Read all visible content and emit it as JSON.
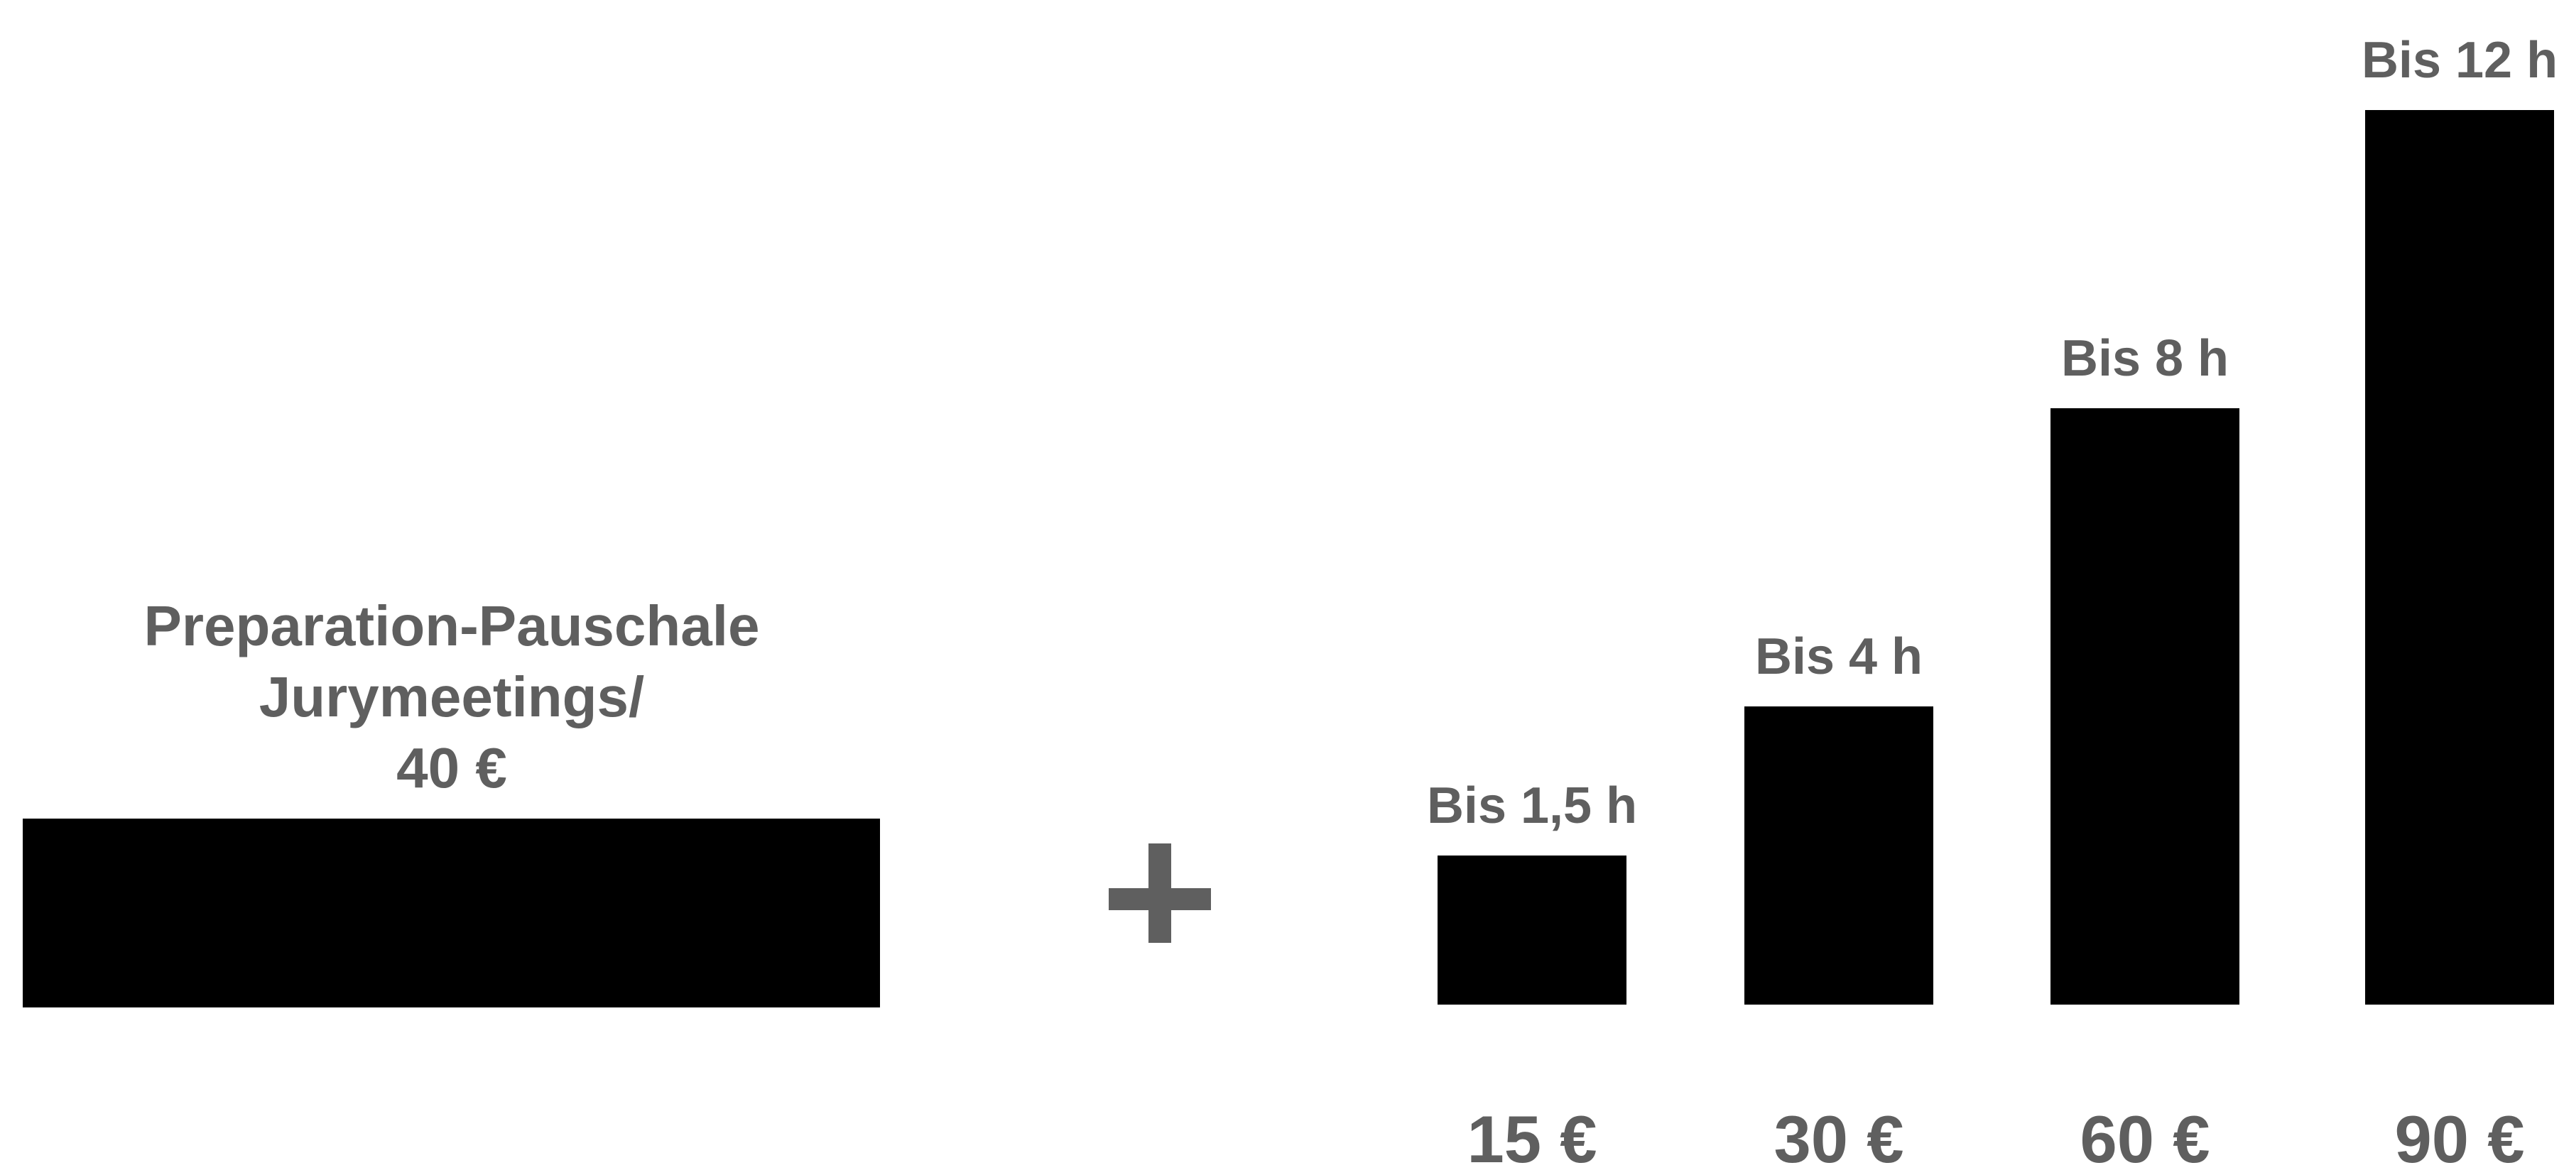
{
  "chart_data": {
    "type": "bar",
    "base": {
      "label_lines": [
        "Preparation-Pauschale",
        "Jurymeetings/",
        "40 €"
      ],
      "value": 40,
      "bar_color": "#000000"
    },
    "operator": "+",
    "tiers": {
      "categories": [
        "Bis 1,5 h",
        "Bis 4 h",
        "Bis 8 h",
        "Bis 12 h"
      ],
      "values": [
        15,
        30,
        60,
        90
      ],
      "value_labels": [
        "15 €",
        "30 €",
        "60 €",
        "90 €"
      ],
      "bar_color": "#000000"
    },
    "title": "",
    "xlabel": "",
    "ylabel": "",
    "grid": false,
    "legend": "none"
  },
  "colors": {
    "bars": "#000000",
    "text": "#5f5f5f",
    "background": "#ffffff"
  }
}
